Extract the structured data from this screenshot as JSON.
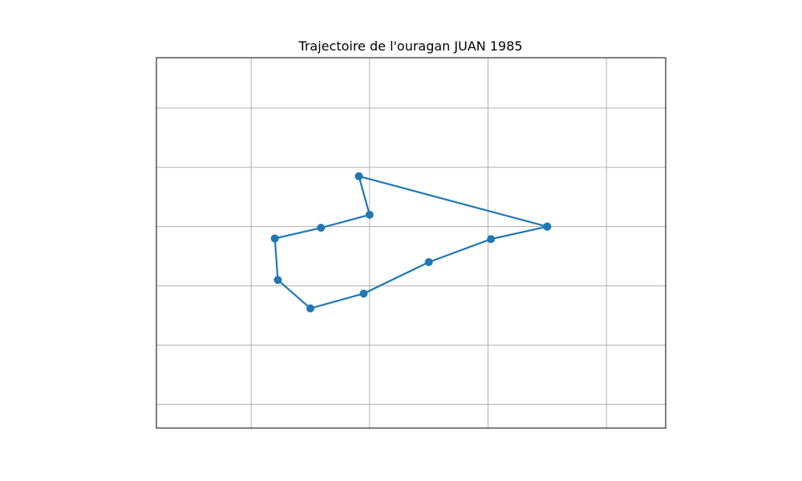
{
  "chart_data": {
    "type": "line",
    "title": "Trajectoire de l'ouragan JUAN 1985",
    "xlabel": "",
    "ylabel": "",
    "xlim": [
      0,
      8.6
    ],
    "ylim": [
      0,
      6.25
    ],
    "grid": true,
    "x_gridlines": [
      1.6,
      3.6,
      5.6,
      7.6
    ],
    "y_gridlines": [
      0.4,
      1.4,
      2.4,
      3.4,
      4.4,
      5.4
    ],
    "series": [
      {
        "color": "#1f77b4",
        "marker": "circle",
        "x": [
          6.6,
          5.65,
          4.6,
          3.5,
          2.6,
          2.05,
          2.0,
          2.78,
          3.6,
          3.42,
          6.6
        ],
        "y": [
          3.4,
          3.19,
          2.8,
          2.27,
          2.02,
          2.5,
          3.2,
          3.38,
          3.6,
          4.25,
          3.4
        ]
      }
    ]
  }
}
